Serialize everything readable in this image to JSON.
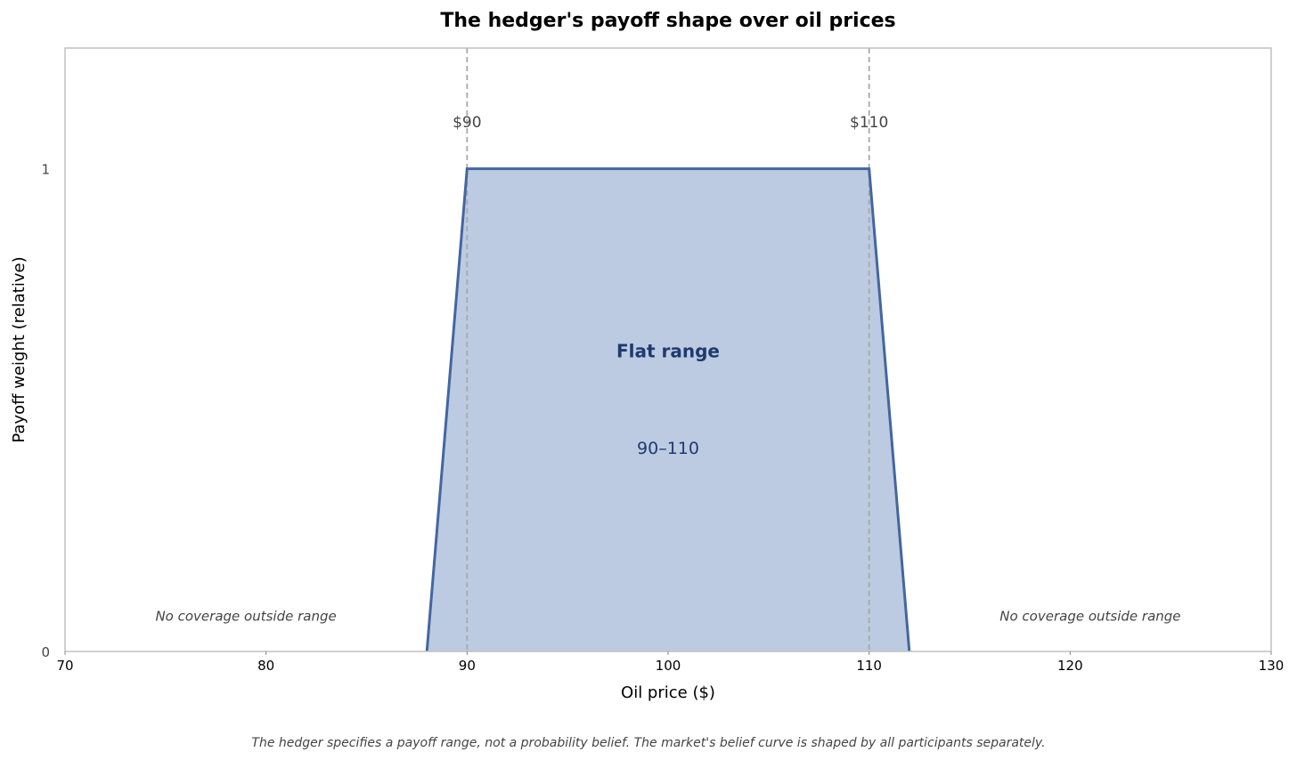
{
  "chart_data": {
    "type": "area",
    "title": "The hedger's payoff shape over oil prices",
    "xlabel": "Oil price ($)",
    "ylabel": "Payoff weight (relative)",
    "xlim": [
      70,
      130
    ],
    "ylim": [
      0,
      1.25
    ],
    "xticks": [
      70,
      80,
      90,
      100,
      110,
      120,
      130
    ],
    "yticks": [
      0,
      1
    ],
    "grid": false,
    "series": [
      {
        "x": [
          88,
          90,
          110,
          112
        ],
        "y": [
          0,
          1,
          1,
          0
        ],
        "color": "#4466a0",
        "fill": "#bccbe2"
      }
    ],
    "reference_lines": [
      {
        "x": 90,
        "label": "$90"
      },
      {
        "x": 110,
        "label": "$110"
      }
    ],
    "annotations": [
      {
        "text": "Flat range",
        "x": 100,
        "y": 0.62,
        "style": "bold"
      },
      {
        "text": "90–110",
        "x": 100,
        "y": 0.42,
        "style": "normal"
      },
      {
        "text": "No coverage outside range",
        "x": 79,
        "y": 0.075,
        "style": "italic"
      },
      {
        "text": "No coverage outside range",
        "x": 121,
        "y": 0.075,
        "style": "italic"
      }
    ],
    "caption": "The hedger specifies a payoff range, not a probability belief. The market's belief curve is shaped by all participants separately."
  }
}
